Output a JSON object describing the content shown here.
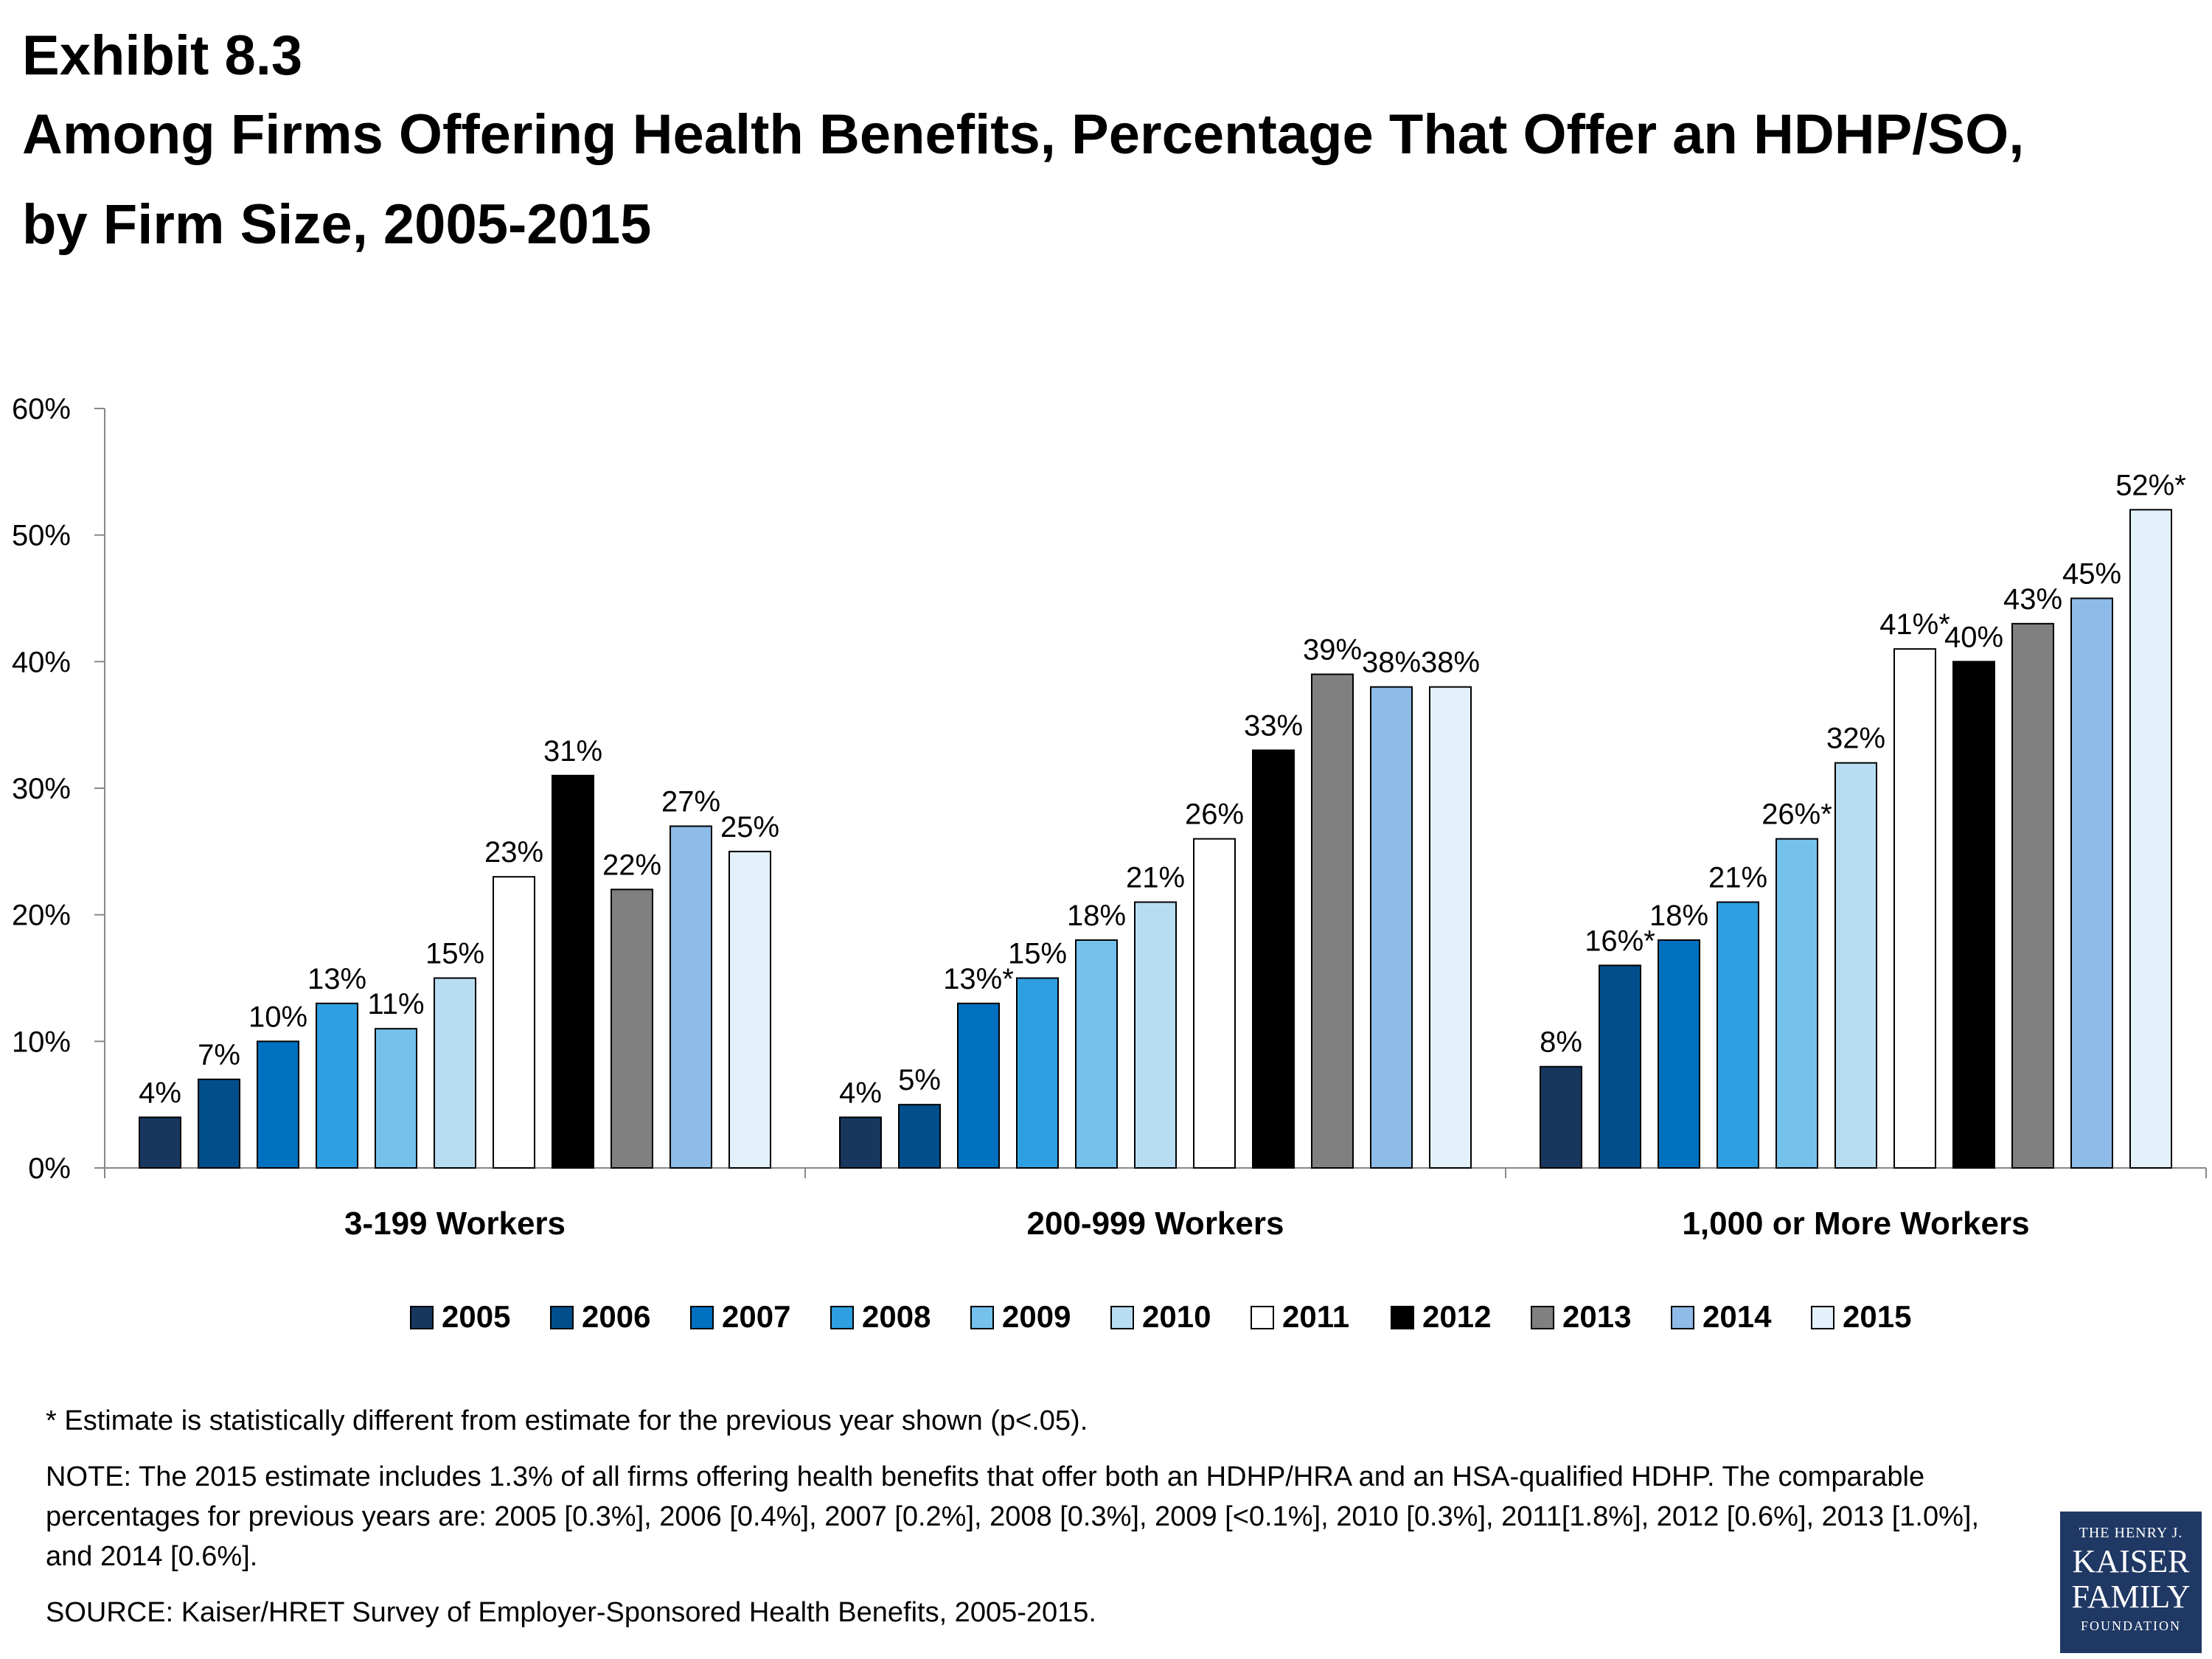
{
  "header": {
    "exhibit": "Exhibit 8.3",
    "title": "Among Firms Offering Health Benefits, Percentage That Offer an HDHP/SO, by Firm Size, 2005-2015"
  },
  "chart_data": {
    "type": "bar",
    "categories": [
      "3-199 Workers",
      "200-999 Workers",
      "1,000 or More Workers"
    ],
    "series": [
      {
        "name": "2005",
        "color": "#17375e",
        "values": [
          4,
          4,
          8
        ],
        "labels": [
          "4%",
          "4%",
          "8%"
        ]
      },
      {
        "name": "2006",
        "color": "#004f8c",
        "values": [
          7,
          5,
          16
        ],
        "labels": [
          "7%",
          "5%",
          "16%*"
        ]
      },
      {
        "name": "2007",
        "color": "#0070c0",
        "values": [
          10,
          13,
          18
        ],
        "labels": [
          "10%",
          "13%*",
          "18%"
        ]
      },
      {
        "name": "2008",
        "color": "#2e9fe0",
        "values": [
          13,
          15,
          21
        ],
        "labels": [
          "13%",
          "15%",
          "21%"
        ]
      },
      {
        "name": "2009",
        "color": "#74c1ec",
        "values": [
          11,
          18,
          26
        ],
        "labels": [
          "11%",
          "18%",
          "26%*"
        ]
      },
      {
        "name": "2010",
        "color": "#b8ddf3",
        "values": [
          15,
          21,
          32
        ],
        "labels": [
          "15%",
          "21%",
          "32%"
        ]
      },
      {
        "name": "2011",
        "color": "#ffffff",
        "values": [
          23,
          26,
          41
        ],
        "labels": [
          "23%",
          "26%",
          "41%*"
        ]
      },
      {
        "name": "2012",
        "color": "#000000",
        "values": [
          31,
          33,
          40
        ],
        "labels": [
          "31%",
          "33%",
          "40%"
        ]
      },
      {
        "name": "2013",
        "color": "#808080",
        "values": [
          22,
          39,
          43
        ],
        "labels": [
          "22%",
          "39%",
          "43%"
        ]
      },
      {
        "name": "2014",
        "color": "#8ebbe8",
        "values": [
          27,
          38,
          45
        ],
        "labels": [
          "27%",
          "38%",
          "45%"
        ]
      },
      {
        "name": "2015",
        "color": "#e3f1fb",
        "values": [
          25,
          38,
          52
        ],
        "labels": [
          "25%",
          "38%",
          "52%*"
        ]
      }
    ],
    "y_ticks": [
      {
        "value": 0,
        "label": "0%"
      },
      {
        "value": 10,
        "label": "10%"
      },
      {
        "value": 20,
        "label": "20%"
      },
      {
        "value": 30,
        "label": "30%"
      },
      {
        "value": 40,
        "label": "40%"
      },
      {
        "value": 50,
        "label": "50%"
      },
      {
        "value": 60,
        "label": "60%"
      }
    ],
    "ylim": [
      0,
      60
    ],
    "grid": false,
    "legend_position": "bottom"
  },
  "footnotes": {
    "asterisk": "* Estimate is statistically different from estimate for the previous year shown (p<.05).",
    "note": "NOTE:  The 2015 estimate includes 1.3% of all firms offering health benefits that offer both an HDHP/HRA and an HSA-qualified HDHP.  The comparable percentages for previous years are: 2005 [0.3%], 2006 [0.4%], 2007 [0.2%], 2008 [0.3%], 2009 [<0.1%], 2010 [0.3%], 2011[1.8%], 2012 [0.6%], 2013 [1.0%], and 2014 [0.6%].",
    "source": "SOURCE:  Kaiser/HRET Survey of Employer-Sponsored Health Benefits, 2005-2015."
  },
  "logo": {
    "line1": "THE HENRY J.",
    "line2": "KAISER",
    "line3": "FAMILY",
    "line4": "FOUNDATION"
  }
}
